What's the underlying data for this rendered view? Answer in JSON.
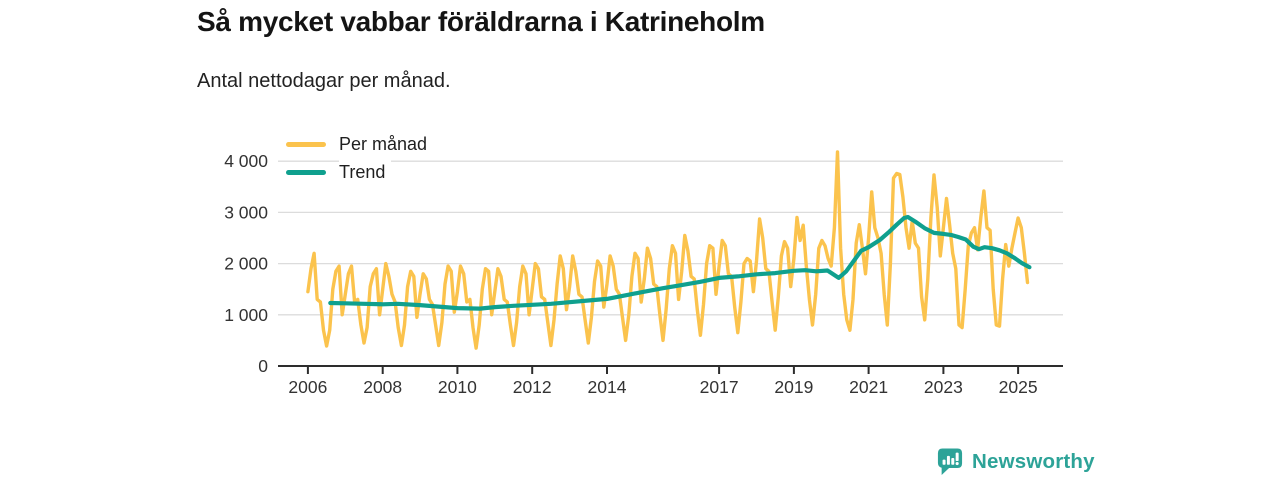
{
  "page": {
    "title": "Så mycket vabbar föräldrarna i Katrineholm",
    "subtitle": "Antal nettodagar per månad."
  },
  "legend": {
    "items": [
      {
        "label": "Per månad"
      },
      {
        "label": "Trend"
      }
    ]
  },
  "footer": {
    "brand": "Newsworthy"
  },
  "chart_data": {
    "type": "line",
    "title": "Så mycket vabbar föräldrarna i Katrineholm",
    "subtitle": "Antal nettodagar per månad.",
    "unit": "nettodagar per månad",
    "colors": {
      "monthly": "#FBC34D",
      "trend": "#0FA08E",
      "grid": "#dcdcdc",
      "axis": "#2d2d2d",
      "brand": "#2da398"
    },
    "x_axis": {
      "range": [
        2005.2,
        2026.2
      ],
      "ticks": [
        2006,
        2008,
        2010,
        2012,
        2014,
        2017,
        2019,
        2021,
        2023,
        2025
      ],
      "tick_labels": [
        "2006",
        "2008",
        "2010",
        "2012",
        "2014",
        "2017",
        "2019",
        "2021",
        "2023",
        "2025"
      ]
    },
    "y_axis": {
      "range": [
        0,
        4300
      ],
      "ticks": [
        0,
        1000,
        2000,
        3000,
        4000
      ],
      "tick_labels": [
        "0",
        "1 000",
        "2 000",
        "3 000",
        "4 000"
      ]
    },
    "x_start_year": 2006,
    "x_start_month": 1,
    "series": [
      {
        "name": "Per månad",
        "color": "#FBC34D",
        "cadence": "monthly",
        "values": [
          1450,
          1900,
          2200,
          1300,
          1250,
          700,
          390,
          700,
          1500,
          1850,
          1950,
          1000,
          1400,
          1800,
          1950,
          1250,
          1300,
          800,
          450,
          750,
          1550,
          1800,
          1900,
          1000,
          1500,
          2000,
          1750,
          1400,
          1250,
          750,
          400,
          800,
          1550,
          1850,
          1750,
          950,
          1400,
          1800,
          1700,
          1300,
          1200,
          800,
          400,
          850,
          1600,
          1950,
          1850,
          1050,
          1450,
          1950,
          1800,
          1250,
          1300,
          750,
          350,
          800,
          1500,
          1900,
          1850,
          1000,
          1450,
          1900,
          1750,
          1300,
          1250,
          800,
          400,
          850,
          1550,
          1950,
          1800,
          1000,
          1500,
          2000,
          1900,
          1350,
          1300,
          850,
          400,
          900,
          1600,
          2150,
          1900,
          1100,
          1550,
          2150,
          1850,
          1400,
          1350,
          900,
          450,
          950,
          1650,
          2050,
          1950,
          1150,
          1600,
          2150,
          1950,
          1500,
          1400,
          950,
          500,
          1000,
          1750,
          2200,
          2100,
          1250,
          1700,
          2300,
          2100,
          1600,
          1550,
          1000,
          500,
          1100,
          1900,
          2350,
          2200,
          1300,
          1850,
          2550,
          2250,
          1750,
          1700,
          1100,
          600,
          1200,
          2000,
          2350,
          2300,
          1400,
          1950,
          2450,
          2350,
          1800,
          1750,
          1150,
          650,
          1250,
          2000,
          2100,
          2050,
          1450,
          2050,
          2870,
          2500,
          1900,
          1850,
          1250,
          700,
          1350,
          2150,
          2430,
          2300,
          1550,
          2100,
          2900,
          2450,
          2750,
          1950,
          1300,
          800,
          1400,
          2300,
          2450,
          2350,
          2100,
          1950,
          2700,
          4180,
          2300,
          1400,
          900,
          700,
          1300,
          2400,
          2760,
          2300,
          1800,
          2500,
          3400,
          2700,
          2500,
          2200,
          1400,
          800,
          2000,
          3670,
          3760,
          3740,
          3300,
          2700,
          2300,
          2830,
          2400,
          2300,
          1350,
          900,
          1700,
          2900,
          3730,
          3100,
          2150,
          2700,
          3270,
          2760,
          2200,
          1900,
          800,
          750,
          1500,
          2350,
          2600,
          2700,
          2270,
          2900,
          3420,
          2700,
          2650,
          1500,
          800,
          780,
          1700,
          2370,
          1950,
          2300,
          2600,
          2890,
          2700,
          2200,
          1630
        ]
      },
      {
        "name": "Trend",
        "color": "#0FA08E",
        "cadence": "anchors",
        "points": [
          [
            2006.6,
            1230
          ],
          [
            2007.0,
            1225
          ],
          [
            2007.5,
            1215
          ],
          [
            2008.0,
            1205
          ],
          [
            2008.4,
            1215
          ],
          [
            2009.0,
            1190
          ],
          [
            2009.5,
            1160
          ],
          [
            2010.0,
            1130
          ],
          [
            2010.6,
            1120
          ],
          [
            2011.0,
            1150
          ],
          [
            2011.5,
            1175
          ],
          [
            2012.0,
            1195
          ],
          [
            2012.5,
            1215
          ],
          [
            2013.0,
            1245
          ],
          [
            2013.5,
            1280
          ],
          [
            2014.0,
            1310
          ],
          [
            2014.5,
            1380
          ],
          [
            2015.0,
            1450
          ],
          [
            2015.5,
            1520
          ],
          [
            2016.0,
            1580
          ],
          [
            2016.5,
            1645
          ],
          [
            2017.0,
            1720
          ],
          [
            2017.5,
            1750
          ],
          [
            2018.0,
            1790
          ],
          [
            2018.5,
            1815
          ],
          [
            2019.0,
            1860
          ],
          [
            2019.3,
            1870
          ],
          [
            2019.6,
            1850
          ],
          [
            2019.9,
            1865
          ],
          [
            2020.2,
            1720
          ],
          [
            2020.4,
            1850
          ],
          [
            2020.6,
            2050
          ],
          [
            2020.8,
            2250
          ],
          [
            2021.0,
            2320
          ],
          [
            2021.3,
            2460
          ],
          [
            2021.55,
            2620
          ],
          [
            2021.75,
            2760
          ],
          [
            2021.95,
            2890
          ],
          [
            2022.05,
            2910
          ],
          [
            2022.25,
            2820
          ],
          [
            2022.5,
            2690
          ],
          [
            2022.75,
            2600
          ],
          [
            2023.0,
            2580
          ],
          [
            2023.2,
            2560
          ],
          [
            2023.4,
            2520
          ],
          [
            2023.6,
            2470
          ],
          [
            2023.8,
            2330
          ],
          [
            2023.95,
            2280
          ],
          [
            2024.1,
            2320
          ],
          [
            2024.3,
            2300
          ],
          [
            2024.5,
            2260
          ],
          [
            2024.7,
            2200
          ],
          [
            2024.9,
            2110
          ],
          [
            2025.1,
            2010
          ],
          [
            2025.3,
            1930
          ]
        ]
      }
    ]
  }
}
